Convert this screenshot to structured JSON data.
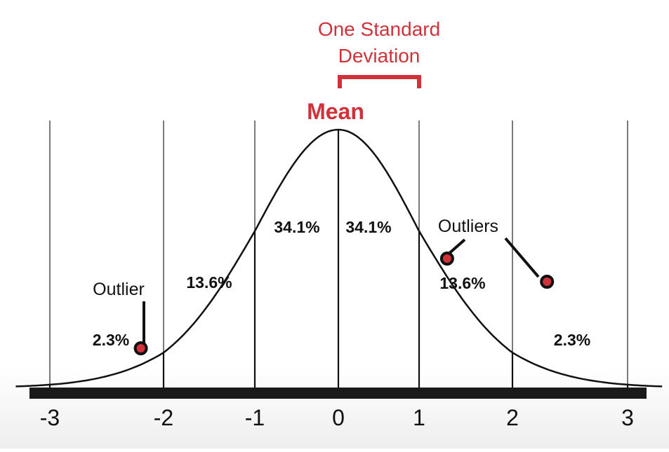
{
  "title": {
    "line1": "One Standard",
    "line2": "Deviation"
  },
  "mean_label": "Mean",
  "colors": {
    "accent": "#d0323a",
    "ink": "#111111",
    "axis_bar": "#1a1a1a",
    "background": "#ffffff"
  },
  "annotations": {
    "outlier_left": "Outlier",
    "outliers_right": "Outliers"
  },
  "chart_data": {
    "type": "area",
    "title": "One Standard Deviation",
    "xlim": [
      -3,
      3
    ],
    "x_ticks": [
      "-3",
      "-2",
      "-1",
      "0",
      "1",
      "2",
      "3"
    ],
    "grid": true,
    "regions": [
      {
        "range": [
          -3,
          -2
        ],
        "label": "2.3%"
      },
      {
        "range": [
          -2,
          -1
        ],
        "label": "13.6%"
      },
      {
        "range": [
          -1,
          0
        ],
        "label": "34.1%"
      },
      {
        "range": [
          0,
          1
        ],
        "label": "34.1%"
      },
      {
        "range": [
          1,
          2
        ],
        "label": "13.6%"
      },
      {
        "range": [
          2,
          3
        ],
        "label": "2.3%"
      }
    ],
    "outlier_points": [
      -2.2,
      1.3,
      2.3
    ]
  }
}
